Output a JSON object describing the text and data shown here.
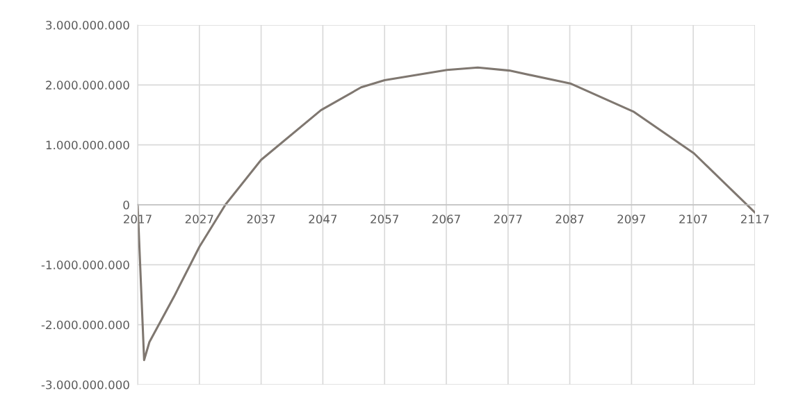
{
  "chart_data": {
    "type": "line",
    "x": [
      2017,
      2018.05,
      2018.9,
      2022.9,
      2027,
      2031.2,
      2037,
      2046.7,
      2053.2,
      2057,
      2067.1,
      2072.1,
      2077.2,
      2087.2,
      2097.4,
      2107.1,
      2117
    ],
    "series": [
      {
        "color": "#7f7770",
        "values": [
          0,
          -2590000000,
          -2290000000,
          -1530000000,
          -700000000,
          0,
          750000000,
          1580000000,
          1960000000,
          2080000000,
          2250000000,
          2290000000,
          2240000000,
          2020000000,
          1550000000,
          860000000,
          -130000000
        ]
      }
    ],
    "xlim": [
      2017,
      2117
    ],
    "xticks": [
      2017,
      2027,
      2037,
      2047,
      2057,
      2067,
      2077,
      2087,
      2097,
      2107,
      2117
    ],
    "ylim": [
      -3000000000,
      3000000000
    ],
    "yticks": [
      {
        "value": -3000000000,
        "label": "-3.000.000.000"
      },
      {
        "value": -2000000000,
        "label": "-2.000.000.000"
      },
      {
        "value": -1000000000,
        "label": "-1.000.000.000"
      },
      0,
      {
        "value": 1000000000,
        "label": "1.000.000.000"
      },
      {
        "value": 2000000000,
        "label": "2.000.000.000"
      },
      {
        "value": 3000000000,
        "label": "3.000.000.000"
      }
    ],
    "grid": true
  }
}
